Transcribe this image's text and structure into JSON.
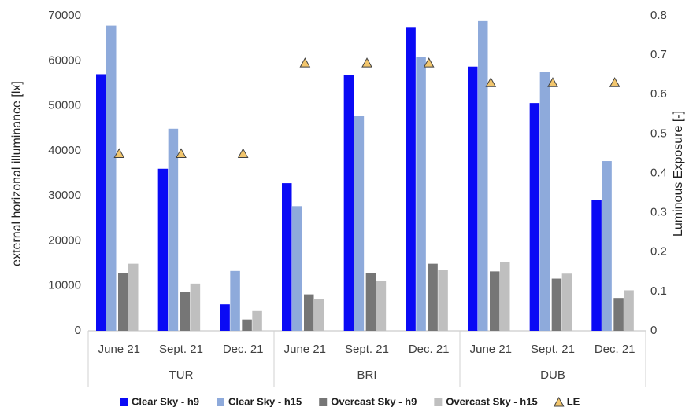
{
  "chart_data": {
    "type": "bar",
    "y_label": "external horizonal illuminance [lx]",
    "y2_label": "Luminous Exposure  [-]",
    "groups": [
      {
        "name": "TUR",
        "categories": [
          "June 21",
          "Sept. 21",
          "Dec. 21"
        ]
      },
      {
        "name": "BRI",
        "categories": [
          "June 21",
          "Sept. 21",
          "Dec. 21"
        ]
      },
      {
        "name": "DUB",
        "categories": [
          "June 21",
          "Sept. 21",
          "Dec. 21"
        ]
      }
    ],
    "series": [
      {
        "name": "Clear Sky - h9",
        "color": "#0a0af5",
        "values": [
          57000,
          36000,
          5900,
          32800,
          56800,
          67500,
          58700,
          50600,
          29100
        ]
      },
      {
        "name": "Clear Sky - h15",
        "color": "#8eaadb",
        "values": [
          67800,
          44900,
          13300,
          27700,
          47800,
          60800,
          68800,
          57600,
          37700
        ]
      },
      {
        "name": "Overcast Sky - h9",
        "color": "#767676",
        "values": [
          12800,
          8700,
          2500,
          8100,
          12800,
          14900,
          13200,
          11600,
          7300
        ]
      },
      {
        "name": "Overcast Sky - h15",
        "color": "#bfbfbf",
        "values": [
          14900,
          10500,
          4400,
          7100,
          11000,
          13600,
          15200,
          12700,
          9000
        ]
      },
      {
        "name": "LE",
        "color": "#f2c66d",
        "type": "scatter",
        "marker": "triangle",
        "axis": "y2",
        "values": [
          0.45,
          0.45,
          0.45,
          0.68,
          0.68,
          0.68,
          0.63,
          0.63,
          0.63
        ]
      }
    ],
    "ylim": [
      0,
      70000
    ],
    "yticks": [
      0,
      10000,
      20000,
      30000,
      40000,
      50000,
      60000,
      70000
    ],
    "y2lim": [
      0,
      0.8
    ],
    "y2ticks": [
      0,
      0.1,
      0.2,
      0.3,
      0.4,
      0.5,
      0.6,
      0.7,
      0.8
    ],
    "grid": false,
    "legend": "bottom"
  }
}
